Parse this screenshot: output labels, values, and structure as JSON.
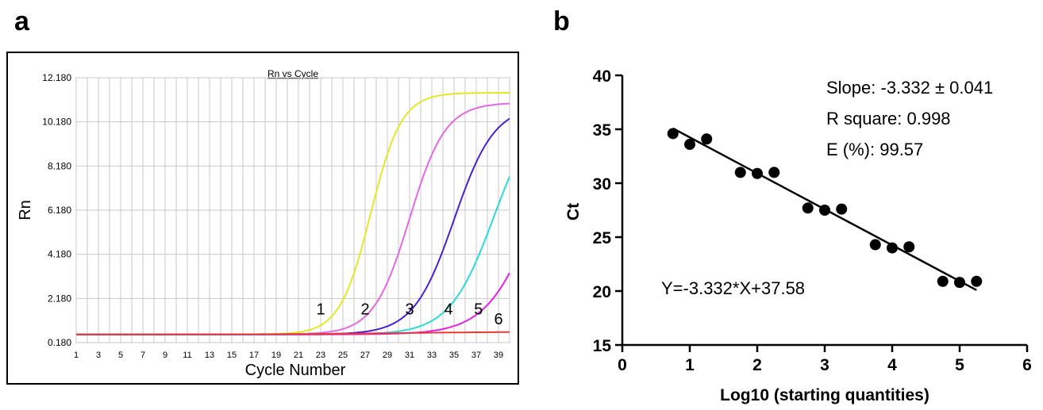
{
  "panels": {
    "a_label": "a",
    "b_label": "b"
  },
  "chart_data": [
    {
      "type": "line",
      "title": "Rn vs Cycle",
      "xlabel": "Cycle Number",
      "ylabel": "Rn",
      "xlim": [
        1,
        40
      ],
      "ylim": [
        0.18,
        12.18
      ],
      "x_ticks": [
        "1",
        "3",
        "5",
        "7",
        "9",
        "11",
        "13",
        "15",
        "17",
        "19",
        "21",
        "23",
        "25",
        "27",
        "29",
        "31",
        "33",
        "35",
        "37",
        "39"
      ],
      "y_ticks": [
        "0.180",
        "2.180",
        "4.180",
        "6.180",
        "8.180",
        "10.180",
        "12.180"
      ],
      "grid": true,
      "series": [
        {
          "name": "1",
          "color": "#e6e626",
          "plateau": 10.95,
          "midpoint": 27.5,
          "slope": 0.72
        },
        {
          "name": "2",
          "color": "#e667e6",
          "plateau": 10.5,
          "midpoint": 31.0,
          "slope": 0.62
        },
        {
          "name": "3",
          "color": "#4b1fd6",
          "plateau": 10.4,
          "midpoint": 35.0,
          "slope": 0.55
        },
        {
          "name": "4",
          "color": "#2ad9d9",
          "plateau": 10.7,
          "midpoint": 38.6,
          "slope": 0.5
        },
        {
          "name": "5",
          "color": "#e61fe6",
          "plateau": 11.0,
          "midpoint": 42.4,
          "slope": 0.45
        },
        {
          "name": "6",
          "color": "#e63a3a",
          "plateau": 0.12,
          "midpoint": 30.0,
          "slope": 0.2
        }
      ],
      "baseline": 0.55,
      "annotations": [
        {
          "text": "1",
          "x": 23,
          "y": 1.45
        },
        {
          "text": "2",
          "x": 27,
          "y": 1.45
        },
        {
          "text": "3",
          "x": 31,
          "y": 1.45
        },
        {
          "text": "4",
          "x": 34.5,
          "y": 1.45
        },
        {
          "text": "5",
          "x": 37.2,
          "y": 1.45
        },
        {
          "text": "6",
          "x": 39,
          "y": 1.0
        }
      ]
    },
    {
      "type": "scatter",
      "xlabel": "Log10 (starting quantities)",
      "ylabel": "Ct",
      "xlim": [
        0,
        6
      ],
      "ylim": [
        15,
        40
      ],
      "x_ticks": [
        "0",
        "1",
        "2",
        "3",
        "4",
        "5",
        "6"
      ],
      "y_ticks": [
        "15",
        "20",
        "25",
        "30",
        "35",
        "40"
      ],
      "grid": false,
      "points": [
        {
          "x": 0.75,
          "y": 34.6
        },
        {
          "x": 1.0,
          "y": 33.6
        },
        {
          "x": 1.25,
          "y": 34.1
        },
        {
          "x": 1.75,
          "y": 31.0
        },
        {
          "x": 2.0,
          "y": 30.9
        },
        {
          "x": 2.25,
          "y": 31.0
        },
        {
          "x": 2.75,
          "y": 27.7
        },
        {
          "x": 3.0,
          "y": 27.5
        },
        {
          "x": 3.25,
          "y": 27.6
        },
        {
          "x": 3.75,
          "y": 24.3
        },
        {
          "x": 4.0,
          "y": 24.0
        },
        {
          "x": 4.25,
          "y": 24.1
        },
        {
          "x": 4.75,
          "y": 20.9
        },
        {
          "x": 5.0,
          "y": 20.8
        },
        {
          "x": 5.25,
          "y": 20.9
        }
      ],
      "fit_line": {
        "slope": -3.332,
        "intercept": 37.58,
        "x_range": [
          0.75,
          5.25
        ]
      },
      "annotations": [
        {
          "text": "Slope: -3.332 ± 0.041"
        },
        {
          "text": "R square: 0.998"
        },
        {
          "text": "E (%): 99.57"
        },
        {
          "text": "Y=-3.332*X+37.58"
        }
      ]
    }
  ]
}
